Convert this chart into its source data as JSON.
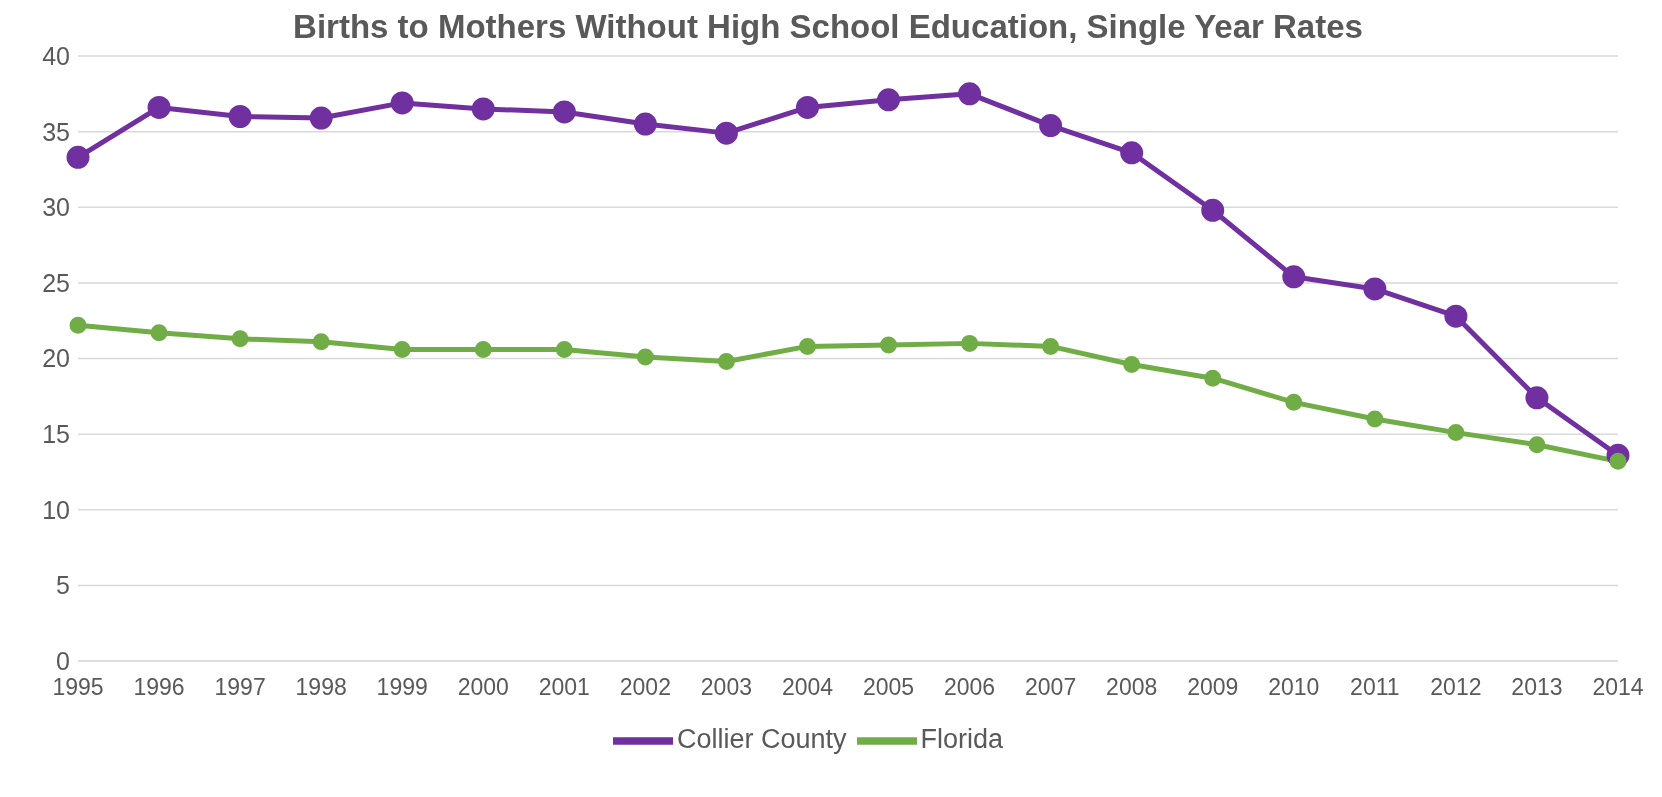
{
  "chart_data": {
    "type": "line",
    "title": "Births to Mothers Without High School Education, Single Year Rates",
    "categories": [
      "1995",
      "1996",
      "1997",
      "1998",
      "1999",
      "2000",
      "2001",
      "2002",
      "2003",
      "2004",
      "2005",
      "2006",
      "2007",
      "2008",
      "2009",
      "2010",
      "2011",
      "2012",
      "2013",
      "2014"
    ],
    "series": [
      {
        "name": "Collier County",
        "color": "#7030a0",
        "values": [
          33.3,
          36.6,
          36.0,
          35.9,
          36.9,
          36.5,
          36.3,
          35.5,
          34.9,
          36.6,
          37.1,
          37.5,
          35.4,
          33.6,
          29.8,
          25.4,
          24.6,
          22.8,
          17.4,
          13.6
        ]
      },
      {
        "name": "Florida",
        "color": "#70ad47",
        "values": [
          22.2,
          21.7,
          21.3,
          21.1,
          20.6,
          20.6,
          20.6,
          20.1,
          19.8,
          20.8,
          20.9,
          21.0,
          20.8,
          19.6,
          18.7,
          17.1,
          16.0,
          15.1,
          14.3,
          13.2
        ]
      }
    ],
    "ylim": [
      0,
      40
    ],
    "yticks": [
      0,
      5,
      10,
      15,
      20,
      25,
      30,
      35,
      40
    ],
    "grid": "y",
    "legend": "bottom",
    "marker": "circle",
    "line_style": "solid"
  }
}
